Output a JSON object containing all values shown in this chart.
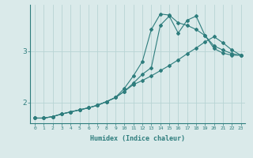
{
  "background_color": "#daeaea",
  "line_color": "#2e7d7d",
  "grid_color": "#b8d4d4",
  "xlabel": "Humidex (Indice chaleur)",
  "x_ticks": [
    0,
    1,
    2,
    3,
    4,
    5,
    6,
    7,
    8,
    9,
    10,
    11,
    12,
    13,
    14,
    15,
    16,
    17,
    18,
    19,
    20,
    21,
    22,
    23
  ],
  "xlim": [
    -0.5,
    23.5
  ],
  "ylim": [
    1.6,
    3.9
  ],
  "yticks": [
    2,
    3
  ],
  "figsize": [
    3.2,
    2.0
  ],
  "dpi": 100,
  "series": [
    [
      1.7,
      1.7,
      1.73,
      1.78,
      1.82,
      1.86,
      1.9,
      1.95,
      2.02,
      2.1,
      2.28,
      2.52,
      2.8,
      3.42,
      3.72,
      3.7,
      3.55,
      3.5,
      3.42,
      3.3,
      3.1,
      3.02,
      2.95,
      2.92
    ],
    [
      1.7,
      1.7,
      1.73,
      1.78,
      1.82,
      1.86,
      1.9,
      1.95,
      2.02,
      2.1,
      2.22,
      2.38,
      2.55,
      2.68,
      3.5,
      3.68,
      3.35,
      3.6,
      3.68,
      3.3,
      3.05,
      2.96,
      2.92,
      2.92
    ],
    [
      1.7,
      1.7,
      1.73,
      1.78,
      1.82,
      1.86,
      1.9,
      1.95,
      2.02,
      2.1,
      2.22,
      2.35,
      2.43,
      2.52,
      2.62,
      2.72,
      2.83,
      2.95,
      3.06,
      3.18,
      3.28,
      3.16,
      3.02,
      2.92
    ]
  ]
}
